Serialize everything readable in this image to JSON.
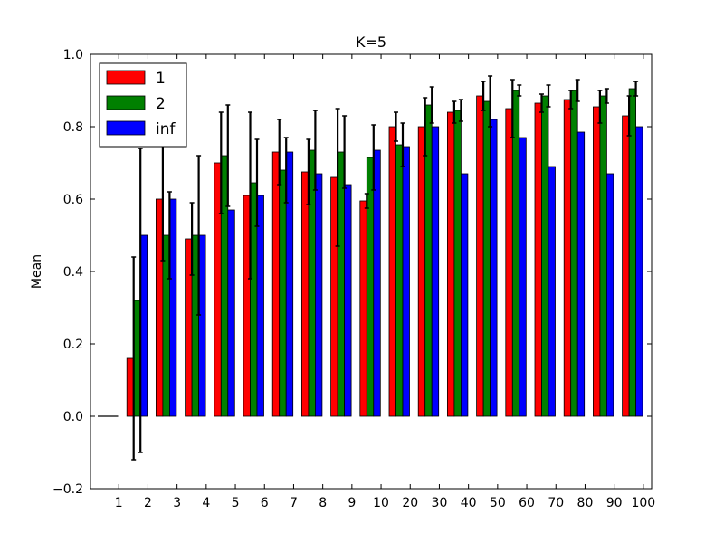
{
  "chart_data": {
    "type": "bar",
    "title": "K=5",
    "xlabel": "",
    "ylabel": "Mean",
    "ylim": [
      -0.2,
      1.0
    ],
    "yticks": [
      "−0.2",
      "0.0",
      "0.2",
      "0.4",
      "0.6",
      "0.8",
      "1.0"
    ],
    "categories": [
      "1",
      "2",
      "3",
      "4",
      "5",
      "6",
      "7",
      "8",
      "9",
      "10",
      "20",
      "30",
      "40",
      "50",
      "60",
      "70",
      "80",
      "90",
      "100"
    ],
    "legend_position": "top-left",
    "grid": false,
    "series": [
      {
        "name": "1",
        "color": "#ff0000",
        "values": [
          0.0,
          0.16,
          0.6,
          0.49,
          0.7,
          0.61,
          0.73,
          0.675,
          0.66,
          0.595,
          0.8,
          0.8,
          0.84,
          0.885,
          0.85,
          0.865,
          0.875,
          0.855,
          0.83
        ],
        "errors": [
          0.0,
          0.28,
          0.17,
          0.1,
          0.14,
          0.23,
          0.09,
          0.09,
          0.19,
          0.02,
          0.04,
          0.08,
          0.03,
          0.04,
          0.08,
          0.025,
          0.025,
          0.045,
          0.055
        ]
      },
      {
        "name": "2",
        "color": "#008000",
        "values": [
          0.0,
          0.32,
          0.5,
          0.5,
          0.72,
          0.645,
          0.68,
          0.735,
          0.73,
          0.715,
          0.75,
          0.86,
          0.845,
          0.87,
          0.9,
          0.885,
          0.9,
          0.885,
          0.905
        ],
        "errors": [
          0.0,
          0.42,
          0.12,
          0.22,
          0.14,
          0.12,
          0.09,
          0.11,
          0.1,
          0.09,
          0.06,
          0.05,
          0.03,
          0.07,
          0.015,
          0.03,
          0.03,
          0.02,
          0.02
        ]
      },
      {
        "name": "inf",
        "color": "#0000ff",
        "values": [
          0.0,
          0.5,
          0.6,
          0.5,
          0.57,
          0.61,
          0.73,
          0.67,
          0.64,
          0.735,
          0.745,
          0.8,
          0.67,
          0.82,
          0.77,
          0.69,
          0.785,
          0.67,
          0.8
        ]
      }
    ]
  }
}
